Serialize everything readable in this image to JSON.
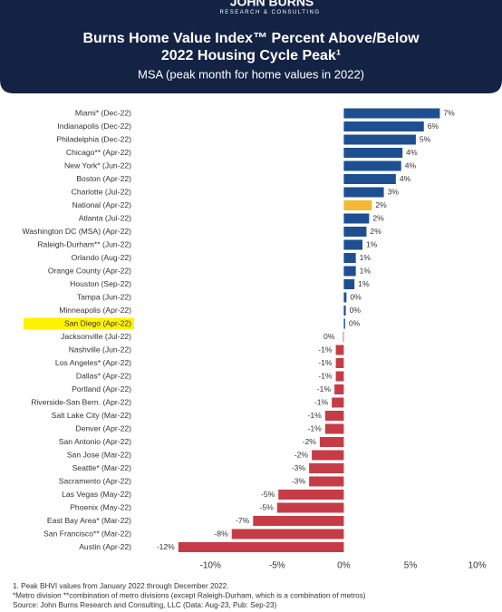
{
  "brand": {
    "name": "JOHN BURNS",
    "tagline": "RESEARCH & CONSULTING"
  },
  "chart_data": {
    "type": "barh",
    "title": "Burns Home Value Index™ Percent Above/Below",
    "title_line2": "2022 Housing Cycle Peak¹",
    "subtitle": "MSA (peak month for home values in 2022)",
    "categories": [
      "Miami* (Dec-22)",
      "Indianapolis (Dec-22)",
      "Philadelphia (Dec-22)",
      "Chicago** (Apr-22)",
      "New York* (Jun-22)",
      "Boston (Apr-22)",
      "Charlotte (Jul-22)",
      "National (Apr-22)",
      "Atlanta (Jul-22)",
      "Washington DC (MSA) (Apr-22)",
      "Raleigh-Durham** (Jun-22)",
      "Orlando (Aug-22)",
      "Orange County (Apr-22)",
      "Houston (Sep-22)",
      "Tampa (Jun-22)",
      "Minneapolis (Apr-22)",
      "San Diego (Apr-22)",
      "Jacksonville (Jul-22)",
      "Nashville (Jun-22)",
      "Los Angeles* (Apr-22)",
      "Dallas* (Apr-22)",
      "Portland (Apr-22)",
      "Riverside-San Bern. (Apr-22)",
      "Salt Lake City (Mar-22)",
      "Denver (Apr-22)",
      "San Antonio (Apr-22)",
      "San Jose (Mar-22)",
      "Seattle* (Mar-22)",
      "Sacramento (Apr-22)",
      "Las Vegas (May-22)",
      "Phoenix (May-22)",
      "East Bay Area* (Mar-22)",
      "San Francisco** (Mar-22)",
      "Austin (Apr-22)"
    ],
    "values": [
      7.2,
      6.0,
      5.4,
      4.4,
      4.3,
      3.9,
      3.0,
      2.1,
      1.9,
      1.7,
      1.4,
      0.9,
      0.9,
      0.8,
      0.2,
      0.15,
      0.1,
      -0.05,
      -0.6,
      -0.6,
      -0.6,
      -0.7,
      -0.9,
      -1.4,
      -1.4,
      -1.8,
      -2.4,
      -2.6,
      -2.6,
      -4.9,
      -5.0,
      -6.8,
      -8.4,
      -12.4
    ],
    "value_labels": [
      "7%",
      "6%",
      "5%",
      "4%",
      "4%",
      "4%",
      "3%",
      "2%",
      "2%",
      "2%",
      "1%",
      "1%",
      "1%",
      "1%",
      "0%",
      "0%",
      "0%",
      "0%",
      "-1%",
      "-1%",
      "-1%",
      "-1%",
      "-1%",
      "-1%",
      "-1%",
      "-2%",
      "-2%",
      "-3%",
      "-3%",
      "-5%",
      "-5%",
      "-7%",
      "-8%",
      "-12%"
    ],
    "positive_color": "#1d4f91",
    "negative_color": "#c63c46",
    "highlight_bar": {
      "category": "National (Apr-22)",
      "color": "#f6b732"
    },
    "highlight_label": {
      "category": "San Diego (Apr-22)",
      "color": "#fff200"
    },
    "xlim": [
      -13,
      10.5
    ],
    "xticks": [
      {
        "value": -10,
        "label": "-10%"
      },
      {
        "value": -5,
        "label": "-5%"
      },
      {
        "value": 0,
        "label": "0%"
      },
      {
        "value": 5,
        "label": "5%"
      },
      {
        "value": 10,
        "label": "10%"
      }
    ],
    "notes": [
      "1. Peak BHVI values from January 2022 through December 2022.",
      "*Metro division **combination of metro divisions (except Raleigh-Durham, which is a combination of metros)",
      "Source: John Burns Research and Consulting, LLC (Data: Aug-23, Pub: Sep-23)"
    ]
  }
}
